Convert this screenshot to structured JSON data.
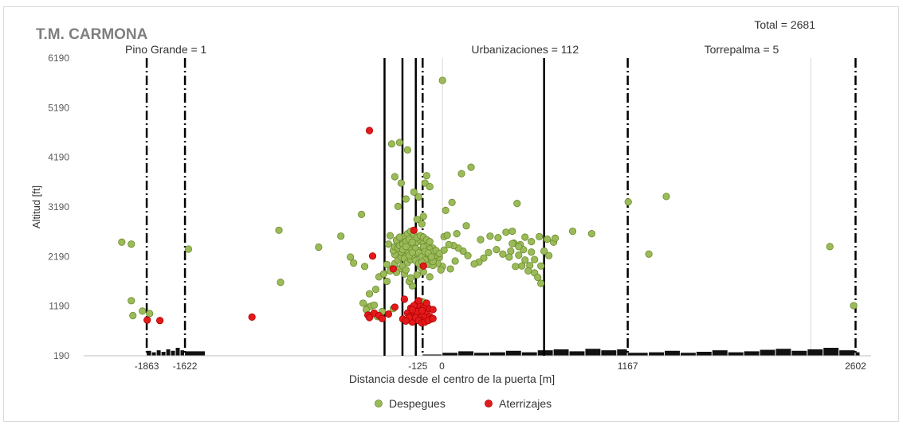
{
  "chart_data": {
    "type": "scatter",
    "title": "T.M. CARMONA",
    "total_label": "Total = 2681",
    "xlabel": "Distancia desde el centro de la puerta [m]",
    "ylabel": "Altitud [ft]",
    "xlim": [
      -2260,
      2700
    ],
    "ylim": [
      190,
      6190
    ],
    "x_ticks": [
      -1863,
      -1622,
      -125,
      0,
      1167,
      2602
    ],
    "x_tick_labels": [
      "-1863",
      "-1622",
      "-125",
      "0",
      "1167",
      "2602"
    ],
    "y_ticks": [
      190,
      1190,
      2190,
      3190,
      4190,
      5190,
      6190
    ],
    "y_tick_labels": [
      "190",
      "1190",
      "2190",
      "3190",
      "4190",
      "5190",
      "6190"
    ],
    "x_grid": [
      0,
      2320
    ],
    "y_grid": false,
    "legend_position": "bottom",
    "region_labels": [
      {
        "text": "Pino Grande = 1",
        "x": -1742
      },
      {
        "text": "Urbanizaciones = 112",
        "x": 520
      },
      {
        "text": "Torrepalma = 5",
        "x": 1884
      }
    ],
    "boundaries": [
      {
        "x": -1863,
        "style": "dashdot"
      },
      {
        "x": -1622,
        "style": "dashdot"
      },
      {
        "x": -125,
        "style": "dashdot"
      },
      {
        "x": 1167,
        "style": "dashdot"
      },
      {
        "x": 2602,
        "style": "dashdot"
      },
      {
        "x": -365,
        "style": "solid"
      },
      {
        "x": -252,
        "style": "solid"
      },
      {
        "x": -168,
        "style": "solid"
      },
      {
        "x": 640,
        "style": "solid"
      }
    ],
    "terrain": [
      {
        "x": -1863,
        "y": 290
      },
      {
        "x": -1830,
        "y": 260
      },
      {
        "x": -1800,
        "y": 300
      },
      {
        "x": -1770,
        "y": 270
      },
      {
        "x": -1740,
        "y": 320
      },
      {
        "x": -1710,
        "y": 290
      },
      {
        "x": -1680,
        "y": 350
      },
      {
        "x": -1650,
        "y": 300
      },
      {
        "x": -1622,
        "y": 280
      },
      {
        "x": -125,
        "y": 215
      },
      {
        "x": 0,
        "y": 250
      },
      {
        "x": 100,
        "y": 280
      },
      {
        "x": 200,
        "y": 250
      },
      {
        "x": 300,
        "y": 260
      },
      {
        "x": 400,
        "y": 290
      },
      {
        "x": 500,
        "y": 260
      },
      {
        "x": 600,
        "y": 300
      },
      {
        "x": 700,
        "y": 320
      },
      {
        "x": 800,
        "y": 280
      },
      {
        "x": 900,
        "y": 330
      },
      {
        "x": 1000,
        "y": 300
      },
      {
        "x": 1100,
        "y": 320
      },
      {
        "x": 1167,
        "y": 250
      },
      {
        "x": 1300,
        "y": 260
      },
      {
        "x": 1400,
        "y": 290
      },
      {
        "x": 1500,
        "y": 250
      },
      {
        "x": 1600,
        "y": 270
      },
      {
        "x": 1700,
        "y": 300
      },
      {
        "x": 1800,
        "y": 260
      },
      {
        "x": 1900,
        "y": 280
      },
      {
        "x": 2000,
        "y": 310
      },
      {
        "x": 2100,
        "y": 330
      },
      {
        "x": 2200,
        "y": 290
      },
      {
        "x": 2300,
        "y": 320
      },
      {
        "x": 2400,
        "y": 350
      },
      {
        "x": 2500,
        "y": 300
      },
      {
        "x": 2602,
        "y": 260
      }
    ],
    "series": [
      {
        "name": "Despegues",
        "color": "#9bbb59",
        "edge": "#6b8a2e",
        "points": [
          [
            -2020,
            2480
          ],
          [
            -1960,
            2440
          ],
          [
            -1600,
            2340
          ],
          [
            -1960,
            1300
          ],
          [
            -1950,
            1000
          ],
          [
            -1890,
            1090
          ],
          [
            -1845,
            1040
          ],
          [
            -1030,
            2720
          ],
          [
            -1020,
            1670
          ],
          [
            -780,
            2380
          ],
          [
            -640,
            2600
          ],
          [
            -580,
            2180
          ],
          [
            -560,
            2060
          ],
          [
            -490,
            1990
          ],
          [
            -470,
            1170
          ],
          [
            -450,
            1190
          ],
          [
            -510,
            3040
          ],
          [
            -500,
            1250
          ],
          [
            -480,
            1120
          ],
          [
            -440,
            1020
          ],
          [
            -430,
            1210
          ],
          [
            -410,
            980
          ],
          [
            -400,
            1780
          ],
          [
            -380,
            1080
          ],
          [
            -310,
            1140
          ],
          [
            -350,
            1690
          ],
          [
            -420,
            1530
          ],
          [
            -460,
            1440
          ],
          [
            -370,
            1840
          ],
          [
            -330,
            1900
          ],
          [
            -320,
            4460
          ],
          [
            -270,
            4490
          ],
          [
            -220,
            4340
          ],
          [
            -230,
            3350
          ],
          [
            -180,
            3490
          ],
          [
            -150,
            3390
          ],
          [
            -110,
            3670
          ],
          [
            -80,
            3600
          ],
          [
            -100,
            3820
          ],
          [
            -300,
            3800
          ],
          [
            -260,
            3670
          ],
          [
            -280,
            3200
          ],
          [
            -160,
            2940
          ],
          [
            -130,
            2850
          ],
          [
            -120,
            3000
          ],
          [
            120,
            3860
          ],
          [
            180,
            3990
          ],
          [
            20,
            3120
          ],
          [
            60,
            3280
          ],
          [
            150,
            2810
          ],
          [
            90,
            2650
          ],
          [
            240,
            2530
          ],
          [
            300,
            2600
          ],
          [
            350,
            2570
          ],
          [
            400,
            2680
          ],
          [
            440,
            2700
          ],
          [
            470,
            3260
          ],
          [
            520,
            2580
          ],
          [
            560,
            2490
          ],
          [
            610,
            2590
          ],
          [
            660,
            2540
          ],
          [
            700,
            2480
          ],
          [
            430,
            2300
          ],
          [
            480,
            2220
          ],
          [
            520,
            2120
          ],
          [
            550,
            2010
          ],
          [
            580,
            1860
          ],
          [
            600,
            1770
          ],
          [
            620,
            1650
          ],
          [
            540,
            1900
          ],
          [
            500,
            2000
          ],
          [
            460,
            1990
          ],
          [
            420,
            2180
          ],
          [
            380,
            2240
          ],
          [
            340,
            2330
          ],
          [
            290,
            2270
          ],
          [
            260,
            2160
          ],
          [
            230,
            2080
          ],
          [
            200,
            2040
          ],
          [
            160,
            2210
          ],
          [
            130,
            2300
          ],
          [
            100,
            2360
          ],
          [
            70,
            2410
          ],
          [
            40,
            2430
          ],
          [
            10,
            2320
          ],
          [
            -20,
            2170
          ],
          [
            -40,
            2220
          ],
          [
            -60,
            2360
          ],
          [
            10,
            2590
          ],
          [
            30,
            2620
          ],
          [
            450,
            2460
          ],
          [
            490,
            2430
          ],
          [
            640,
            2300
          ],
          [
            670,
            2210
          ],
          [
            620,
            2000
          ],
          [
            580,
            2130
          ],
          [
            560,
            2280
          ],
          [
            510,
            2330
          ],
          [
            480,
            2390
          ],
          [
            440,
            2450
          ],
          [
            0,
            1990
          ],
          [
            -10,
            1920
          ],
          [
            50,
            1940
          ],
          [
            80,
            2100
          ],
          [
            -30,
            2050
          ],
          [
            -120,
            1880
          ],
          [
            -140,
            1970
          ],
          [
            -90,
            2030
          ],
          [
            -60,
            2010
          ],
          [
            -80,
            1780
          ],
          [
            -190,
            1600
          ],
          [
            -210,
            1690
          ],
          [
            -240,
            1840
          ],
          [
            -200,
            1760
          ],
          [
            -160,
            1820
          ],
          [
            -270,
            1940
          ],
          [
            -250,
            2000
          ],
          [
            -230,
            1920
          ],
          [
            -290,
            1870
          ],
          [
            -310,
            1960
          ],
          [
            -300,
            2050
          ],
          [
            -280,
            2120
          ],
          [
            -260,
            2180
          ],
          [
            -240,
            2240
          ],
          [
            -220,
            2300
          ],
          [
            -200,
            2360
          ],
          [
            -180,
            2420
          ],
          [
            -160,
            2480
          ],
          [
            -140,
            2520
          ],
          [
            -120,
            2460
          ],
          [
            -100,
            2400
          ],
          [
            -80,
            2340
          ],
          [
            -60,
            2280
          ],
          [
            -40,
            2310
          ],
          [
            -20,
            2250
          ],
          [
            -300,
            2230
          ],
          [
            -310,
            2310
          ],
          [
            -300,
            2390
          ],
          [
            -280,
            2460
          ],
          [
            -260,
            2520
          ],
          [
            -240,
            2590
          ],
          [
            -220,
            2650
          ],
          [
            -200,
            2700
          ],
          [
            -180,
            2630
          ],
          [
            -160,
            2570
          ],
          [
            -140,
            2610
          ],
          [
            -120,
            2580
          ],
          [
            -100,
            2530
          ],
          [
            -80,
            2490
          ],
          [
            -260,
            2280
          ],
          [
            -240,
            2150
          ],
          [
            -220,
            2070
          ],
          [
            -200,
            2130
          ],
          [
            -180,
            2190
          ],
          [
            -160,
            2250
          ],
          [
            -140,
            2320
          ],
          [
            -120,
            2380
          ],
          [
            -100,
            2200
          ],
          [
            -80,
            2140
          ],
          [
            -60,
            2090
          ],
          [
            -280,
            2360
          ],
          [
            -270,
            2410
          ],
          [
            -250,
            2440
          ],
          [
            -230,
            2490
          ],
          [
            -210,
            2540
          ],
          [
            -190,
            2480
          ],
          [
            -170,
            2350
          ],
          [
            -150,
            2270
          ],
          [
            -130,
            2190
          ],
          [
            -110,
            2120
          ],
          [
            -250,
            2330
          ],
          [
            -230,
            2390
          ],
          [
            -210,
            2210
          ],
          [
            -190,
            2270
          ],
          [
            -170,
            2110
          ],
          [
            -150,
            2050
          ],
          [
            -130,
            2080
          ],
          [
            -110,
            2290
          ],
          [
            -90,
            2260
          ],
          [
            -70,
            2180
          ],
          [
            -290,
            2520
          ],
          [
            -270,
            2580
          ],
          [
            -330,
            2610
          ],
          [
            -340,
            2440
          ],
          [
            -350,
            2030
          ],
          [
            -120,
            1270
          ],
          [
            -130,
            1180
          ],
          [
            -110,
            1130
          ],
          [
            0,
            5740
          ],
          [
            1300,
            2240
          ],
          [
            1410,
            3400
          ],
          [
            1170,
            3290
          ],
          [
            820,
            2700
          ],
          [
            940,
            2650
          ],
          [
            710,
            2560
          ],
          [
            2440,
            2390
          ],
          [
            2590,
            1200
          ]
        ]
      },
      {
        "name": "Aterrizajes",
        "color": "#e31a1c",
        "edge": "#b00000",
        "points": [
          [
            -460,
            4730
          ],
          [
            -1860,
            910
          ],
          [
            -1780,
            900
          ],
          [
            -1200,
            970
          ],
          [
            -440,
            2200
          ],
          [
            -310,
            1940
          ],
          [
            -180,
            2720
          ],
          [
            -120,
            2000
          ],
          [
            -240,
            1330
          ],
          [
            -470,
            1010
          ],
          [
            -460,
            960
          ],
          [
            -430,
            1050
          ],
          [
            -400,
            1000
          ],
          [
            -380,
            940
          ],
          [
            -340,
            1030
          ],
          [
            -300,
            1170
          ],
          [
            -250,
            930
          ],
          [
            -220,
            1050
          ],
          [
            -200,
            1000
          ],
          [
            -190,
            870
          ],
          [
            -180,
            1080
          ],
          [
            -170,
            1180
          ],
          [
            -160,
            1250
          ],
          [
            -150,
            1130
          ],
          [
            -140,
            1050
          ],
          [
            -130,
            980
          ],
          [
            -120,
            920
          ],
          [
            -110,
            1000
          ],
          [
            -100,
            1080
          ],
          [
            -90,
            1150
          ],
          [
            -80,
            980
          ],
          [
            -70,
            930
          ],
          [
            -200,
            1150
          ],
          [
            -180,
            1200
          ],
          [
            -160,
            1080
          ],
          [
            -140,
            1200
          ],
          [
            -120,
            1150
          ],
          [
            -100,
            1250
          ],
          [
            -150,
            1300
          ],
          [
            -170,
            960
          ],
          [
            -150,
            900
          ],
          [
            -130,
            850
          ],
          [
            -110,
            870
          ],
          [
            -90,
            900
          ],
          [
            -60,
            1120
          ],
          [
            -60,
            940
          ],
          [
            -210,
            960
          ],
          [
            -230,
            890
          ],
          [
            -190,
            1120
          ],
          [
            -130,
            1100
          ]
        ]
      }
    ]
  }
}
